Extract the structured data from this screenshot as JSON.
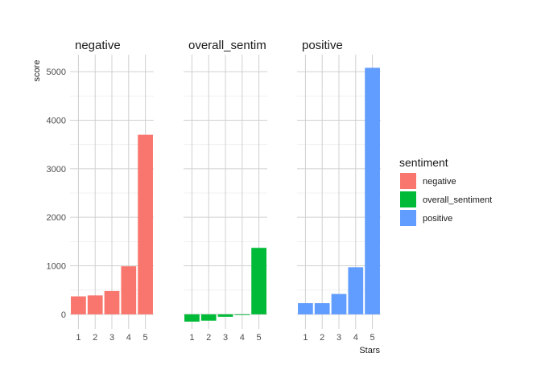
{
  "chart_data": {
    "type": "bar",
    "facet_by": "sentiment",
    "categories": [
      "1",
      "2",
      "3",
      "4",
      "5"
    ],
    "xlabel": "Stars",
    "ylabel": "score",
    "ylim": [
      -300,
      5350
    ],
    "yticks": [
      "0",
      "1000",
      "2000",
      "3000",
      "4000",
      "5000"
    ],
    "grid": true,
    "legend": {
      "title": "sentiment",
      "placement": "right"
    },
    "series": [
      {
        "name": "negative",
        "panel_title": "negative",
        "color": "#F8766D",
        "values": [
          370,
          390,
          480,
          990,
          3700
        ]
      },
      {
        "name": "overall_sentiment",
        "panel_title": "overall_sentim",
        "color": "#00BA38",
        "values": [
          -150,
          -130,
          -50,
          -15,
          1370
        ]
      },
      {
        "name": "positive",
        "panel_title": "positive",
        "color": "#619CFF",
        "values": [
          230,
          230,
          420,
          970,
          5080
        ]
      }
    ]
  }
}
